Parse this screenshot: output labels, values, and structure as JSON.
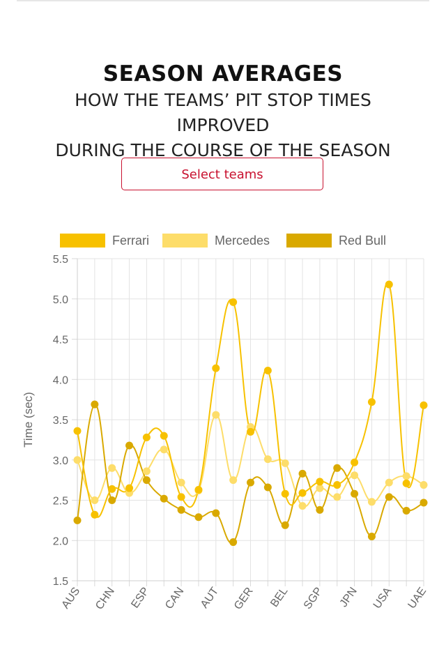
{
  "header": {
    "title": "SEASON AVERAGES",
    "subtitle_line1": "HOW THE TEAMS’ PIT STOP TIMES IMPROVED",
    "subtitle_line2": "DURING THE COURSE OF THE SEASON"
  },
  "controls": {
    "select_label": "Select teams"
  },
  "colors": {
    "accent": "#c8102e"
  },
  "chart_data": {
    "type": "line",
    "ylabel": "Time (sec)",
    "ylim": [
      1.5,
      5.5
    ],
    "yticks": [
      "5.5",
      "5.0",
      "4.5",
      "4.0",
      "3.5",
      "3.0",
      "2.5",
      "2.0",
      "1.5"
    ],
    "ytick_values": [
      5.5,
      5.0,
      4.5,
      4.0,
      3.5,
      3.0,
      2.5,
      2.0,
      1.5
    ],
    "tick_labels": [
      "AUS",
      "CHN",
      "ESP",
      "CAN",
      "AUT",
      "GER",
      "BEL",
      "SGP",
      "JPN",
      "USA",
      "UAE"
    ],
    "tick_indices": [
      0,
      2,
      4,
      6,
      8,
      10,
      12,
      14,
      16,
      18,
      20
    ],
    "n_points": 21,
    "grid": true,
    "legend_position": "top",
    "series": [
      {
        "name": "Ferrari",
        "color": "#f7c100",
        "values": [
          3.36,
          2.32,
          2.64,
          2.65,
          3.28,
          3.3,
          2.54,
          2.63,
          4.14,
          4.96,
          3.35,
          4.11,
          2.58,
          2.59,
          2.73,
          2.69,
          2.97,
          3.72,
          5.18,
          2.71,
          3.68
        ]
      },
      {
        "name": "Mercedes",
        "color": "#fddd6a",
        "values": [
          3.0,
          2.5,
          2.9,
          2.59,
          2.86,
          3.13,
          2.72,
          2.62,
          3.56,
          2.75,
          3.41,
          3.01,
          2.96,
          2.43,
          2.65,
          2.54,
          2.81,
          2.48,
          2.72,
          2.8,
          2.69
        ]
      },
      {
        "name": "Red Bull",
        "color": "#d9a900",
        "values": [
          2.25,
          3.69,
          2.5,
          3.18,
          2.75,
          2.52,
          2.38,
          2.29,
          2.34,
          1.98,
          2.72,
          2.66,
          2.19,
          2.83,
          2.38,
          2.9,
          2.58,
          2.05,
          2.54,
          2.37,
          2.47
        ]
      }
    ]
  }
}
